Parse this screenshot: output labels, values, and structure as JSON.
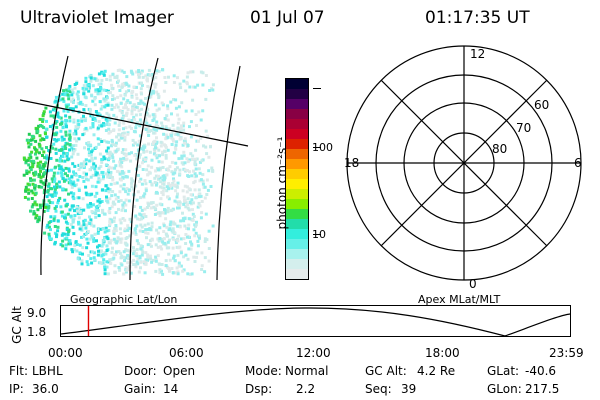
{
  "header": {
    "instrument": "Ultraviolet Imager",
    "date": "01 Jul 07",
    "time": "01:17:35 UT"
  },
  "colorbar": {
    "unit_label": "photon cm⁻²s⁻¹",
    "tick_labels": [
      "100",
      "10"
    ],
    "colors": [
      "#000033",
      "#220044",
      "#550066",
      "#880044",
      "#aa0033",
      "#cc0022",
      "#dd2200",
      "#ee6600",
      "#ff9900",
      "#ffcc00",
      "#ffee00",
      "#ccee00",
      "#88ee00",
      "#33dd44",
      "#22ddaa",
      "#33eedd",
      "#66f0e8",
      "#a8f2ee",
      "#d4efed",
      "#e6ecec"
    ]
  },
  "polar_plot": {
    "mlt_labels": {
      "top": "12",
      "left": "18",
      "right": "6",
      "bottom": "0"
    },
    "lat_labels": [
      "60",
      "70",
      "80"
    ]
  },
  "altitude_panel": {
    "ylabel": "GC Alt",
    "y_ticks": [
      "9.0",
      "1.8"
    ],
    "left_title": "Geographic Lat/Lon",
    "right_title": "Apex MLat/MLT",
    "x_ticks": [
      "00:00",
      "06:00",
      "12:00",
      "18:00",
      "23:59"
    ],
    "marker_time_fraction": 0.054
  },
  "status": {
    "row1": [
      {
        "label": "Flt:",
        "value": "LBHL"
      },
      {
        "label": "Door:",
        "value": "Open"
      },
      {
        "label": "Mode:",
        "value": "Normal"
      },
      {
        "label": "GC Alt:",
        "value": "4.2 Re"
      },
      {
        "label": "GLat:",
        "value": "-40.6"
      }
    ],
    "row2": [
      {
        "label": "IP:",
        "value": "36.0"
      },
      {
        "label": "Gain:",
        "value": "14"
      },
      {
        "label": "Dsp:",
        "value": "2.2"
      },
      {
        "label": "Seq:",
        "value": "39"
      },
      {
        "label": "GLon:",
        "value": "217.5"
      }
    ]
  }
}
